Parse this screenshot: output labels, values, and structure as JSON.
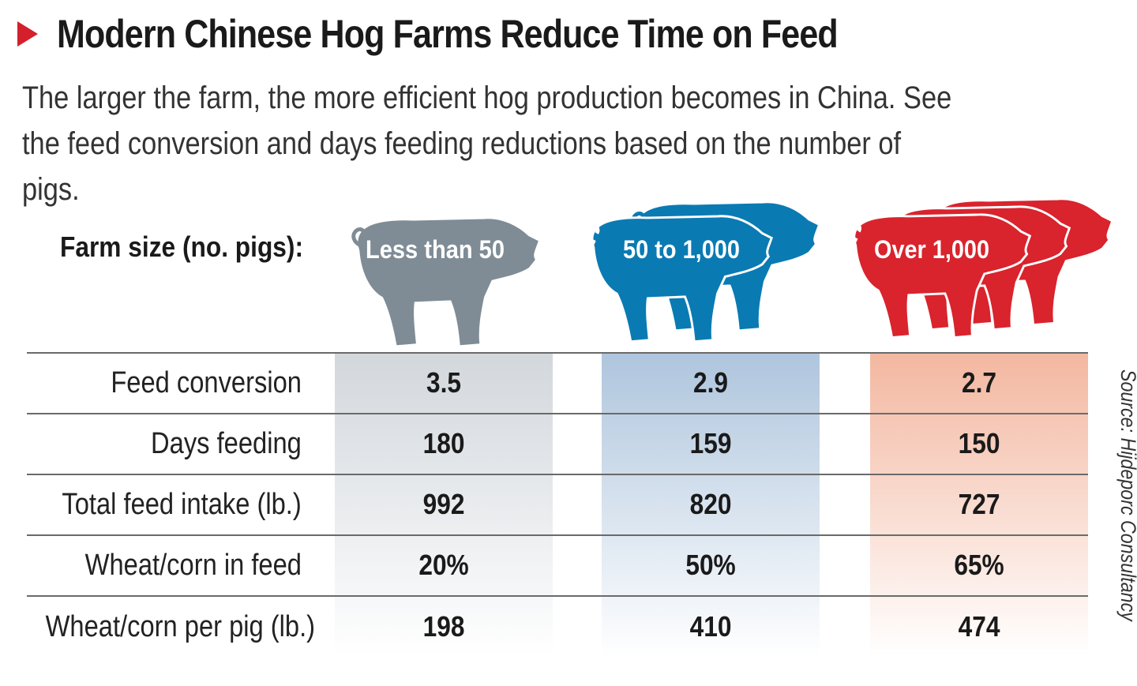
{
  "title": "Modern Chinese Hog Farms Reduce Time on Feed",
  "subtitle": "The larger the farm, the more efficient hog production becomes in China. See the feed conversion and days feeding reductions based on the number of pigs.",
  "source": "Source: Hijdeporc Consultancy",
  "colors": {
    "accent": "#d4202c",
    "small": "#7f8c96",
    "medium": "#0a7ab3",
    "large": "#d9232d"
  },
  "icons": [
    "title-arrow-icon",
    "pig-icon"
  ],
  "chart_data": {
    "type": "table",
    "header_label": "Farm size (no. pigs):",
    "columns": [
      "Less than 50",
      "50 to 1,000",
      "Over 1,000"
    ],
    "rows": [
      {
        "label": "Feed conversion",
        "values": [
          "3.5",
          "2.9",
          "2.7"
        ]
      },
      {
        "label": "Days feeding",
        "values": [
          "180",
          "159",
          "150"
        ]
      },
      {
        "label": "Total feed intake (lb.)",
        "values": [
          "992",
          "820",
          "727"
        ]
      },
      {
        "label": "Wheat/corn in feed",
        "values": [
          "20%",
          "50%",
          "65%"
        ]
      },
      {
        "label": "Wheat/corn per pig (lb.)",
        "values": [
          "198",
          "410",
          "474"
        ]
      }
    ]
  }
}
